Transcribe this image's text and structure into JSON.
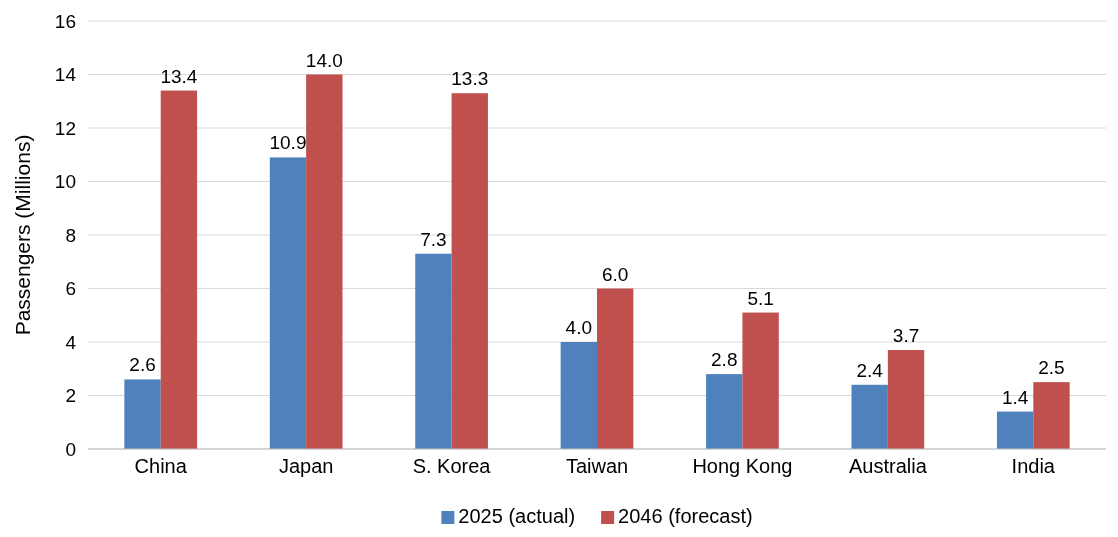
{
  "chart_data": {
    "type": "bar",
    "ylabel": "Passengers (Millions)",
    "categories": [
      "China",
      "Japan",
      "S. Korea",
      "Taiwan",
      "Hong Kong",
      "Australia",
      "India"
    ],
    "series": [
      {
        "name": "2025 (actual)",
        "color": "#4f81bd",
        "values": [
          2.6,
          10.9,
          7.3,
          4.0,
          2.8,
          2.4,
          1.4
        ],
        "value_labels": [
          "2.6",
          "10.9",
          "7.3",
          "4.0",
          "2.8",
          "2.4",
          "1.4"
        ]
      },
      {
        "name": "2046 (forecast)",
        "color": "#c0504d",
        "values": [
          13.4,
          14.0,
          13.3,
          6.0,
          5.1,
          3.7,
          2.5
        ],
        "value_labels": [
          "13.4",
          "14.0",
          "13.3",
          "6.0",
          "5.1",
          "3.7",
          "2.5"
        ]
      }
    ],
    "ylim": [
      0,
      16
    ],
    "yticks": [
      0,
      2,
      4,
      6,
      8,
      10,
      12,
      14,
      16
    ],
    "grid": "y",
    "legend": "bottom"
  }
}
